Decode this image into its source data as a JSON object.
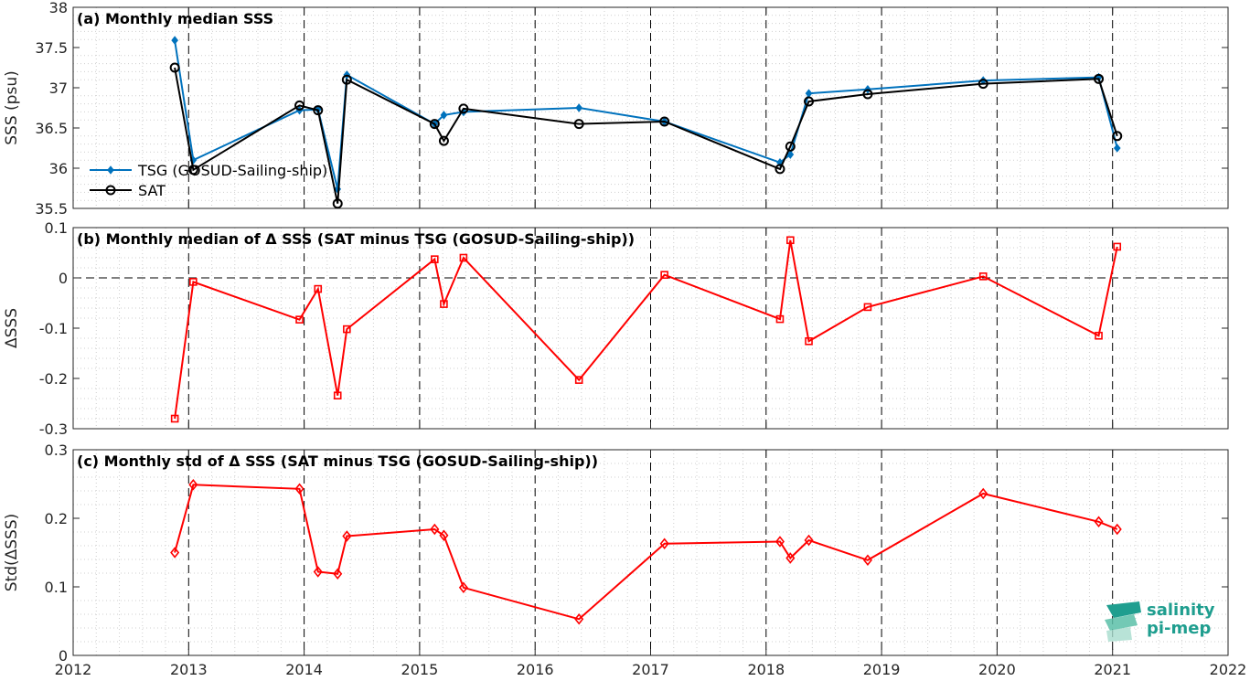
{
  "chart_data": [
    {
      "type": "line",
      "title": "(a) Monthly median SSS",
      "ylabel": "SSS (psu)",
      "ylim": [
        35.5,
        38
      ],
      "yticks": [
        "35.5",
        "36",
        "36.5",
        "37",
        "37.5",
        "38"
      ],
      "xlim": [
        2012,
        2022
      ],
      "grid": "minor dotted",
      "legend_position": "left",
      "series": [
        {
          "name": "TSG (GOSUD-Sailing-ship)",
          "color": "#0072bd",
          "marker": "diamond",
          "x": [
            2012.88,
            2013.04,
            2013.96,
            2014.12,
            2014.29,
            2014.37,
            2015.13,
            2015.21,
            2015.38,
            2016.38,
            2017.12,
            2018.12,
            2018.21,
            2018.37,
            2018.88,
            2019.88,
            2020.88,
            2021.04
          ],
          "y": [
            37.59,
            36.1,
            36.72,
            36.73,
            35.74,
            37.16,
            36.55,
            36.66,
            36.7,
            36.75,
            36.58,
            36.07,
            36.17,
            36.93,
            36.98,
            37.09,
            37.13,
            36.25
          ]
        },
        {
          "name": "SAT",
          "color": "#000000",
          "marker": "circle",
          "x": [
            2012.88,
            2013.04,
            2013.96,
            2014.12,
            2014.29,
            2014.37,
            2015.13,
            2015.21,
            2015.38,
            2016.38,
            2017.12,
            2018.12,
            2018.21,
            2018.37,
            2018.88,
            2019.88,
            2020.88,
            2021.04
          ],
          "y": [
            37.25,
            35.98,
            36.78,
            36.72,
            35.56,
            37.1,
            36.55,
            36.34,
            36.74,
            36.55,
            36.58,
            35.99,
            36.27,
            36.83,
            36.92,
            37.05,
            37.11,
            36.4
          ]
        }
      ]
    },
    {
      "type": "line",
      "title": "(b) Monthly median of Δ SSS (SAT minus TSG (GOSUD-Sailing-ship))",
      "ylabel": "ΔSSS",
      "ylim": [
        -0.3,
        0.1
      ],
      "yticks": [
        "-0.3",
        "-0.2",
        "-0.1",
        "0",
        "0.1"
      ],
      "xlim": [
        2012,
        2022
      ],
      "zero_line": "dashed",
      "series": [
        {
          "color": "#ff0000",
          "marker": "square",
          "x": [
            2012.88,
            2013.04,
            2013.96,
            2014.12,
            2014.29,
            2014.37,
            2015.13,
            2015.21,
            2015.38,
            2016.38,
            2017.12,
            2018.12,
            2018.21,
            2018.37,
            2018.88,
            2019.88,
            2020.88,
            2021.04
          ],
          "y": [
            -0.28,
            -0.008,
            -0.083,
            -0.022,
            -0.234,
            -0.102,
            0.037,
            -0.052,
            0.04,
            -0.203,
            0.006,
            -0.082,
            0.075,
            -0.126,
            -0.058,
            0.003,
            -0.115,
            0.062
          ]
        }
      ]
    },
    {
      "type": "line",
      "title": "(c) Monthly std of Δ SSS (SAT minus TSG (GOSUD-Sailing-ship))",
      "ylabel": "Std(ΔSSS)",
      "ylim": [
        0,
        0.3
      ],
      "yticks": [
        "0",
        "0.1",
        "0.2",
        "0.3"
      ],
      "xlim": [
        2012,
        2022
      ],
      "xticks": [
        "2012",
        "2013",
        "2014",
        "2015",
        "2016",
        "2017",
        "2018",
        "2019",
        "2020",
        "2021",
        "2022"
      ],
      "series": [
        {
          "color": "#ff0000",
          "marker": "diamond",
          "x": [
            2012.88,
            2013.04,
            2013.96,
            2014.12,
            2014.29,
            2014.37,
            2015.13,
            2015.21,
            2015.38,
            2016.38,
            2017.12,
            2018.12,
            2018.21,
            2018.37,
            2018.88,
            2019.88,
            2020.88,
            2021.04
          ],
          "y": [
            0.15,
            0.249,
            0.243,
            0.122,
            0.119,
            0.174,
            0.184,
            0.175,
            0.099,
            0.053,
            0.163,
            0.166,
            0.142,
            0.168,
            0.139,
            0.236,
            0.195,
            0.184
          ]
        }
      ]
    }
  ],
  "logo": {
    "line1": "salinity",
    "line2": "pi-mep",
    "color": "#1f9e8f"
  }
}
